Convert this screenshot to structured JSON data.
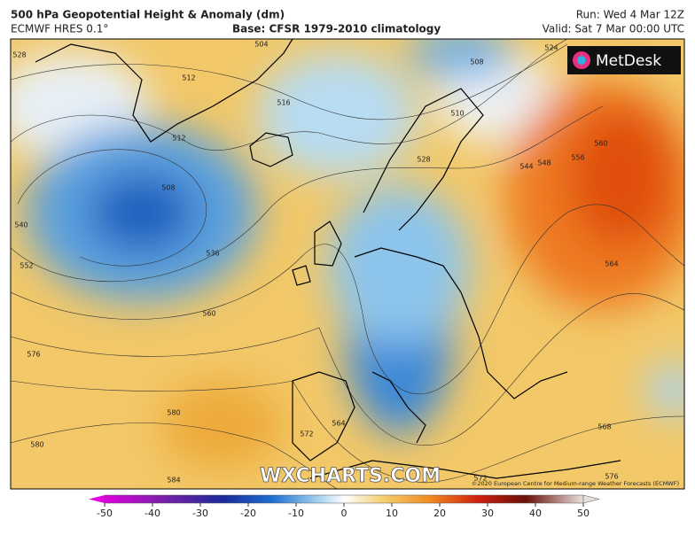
{
  "header": {
    "title": "500 hPa Geopotential Height & Anomaly (dm)",
    "model": "ECMWF HRES 0.1°",
    "base": "Base: CFSR 1979-2010 climatology",
    "run": "Run: Wed 4 Mar 12Z",
    "valid": "Valid: Sat 7 Mar 00:00 UTC"
  },
  "logo": "MetDesk",
  "watermark": "WXCHARTS.COM",
  "copyright": "©2020 European Centre for Medium-range Weather Forecasts (ECMWF)",
  "contour_labels": [
    528,
    504,
    512,
    516,
    508,
    510,
    512,
    508,
    528,
    544,
    548,
    556,
    560,
    540,
    552,
    536,
    560,
    564,
    576,
    580,
    580,
    584,
    564,
    572,
    572,
    568,
    576,
    524
  ],
  "colorbar": {
    "ticks": [
      -50,
      -40,
      -30,
      -20,
      -10,
      0,
      10,
      20,
      30,
      40,
      50
    ]
  }
}
